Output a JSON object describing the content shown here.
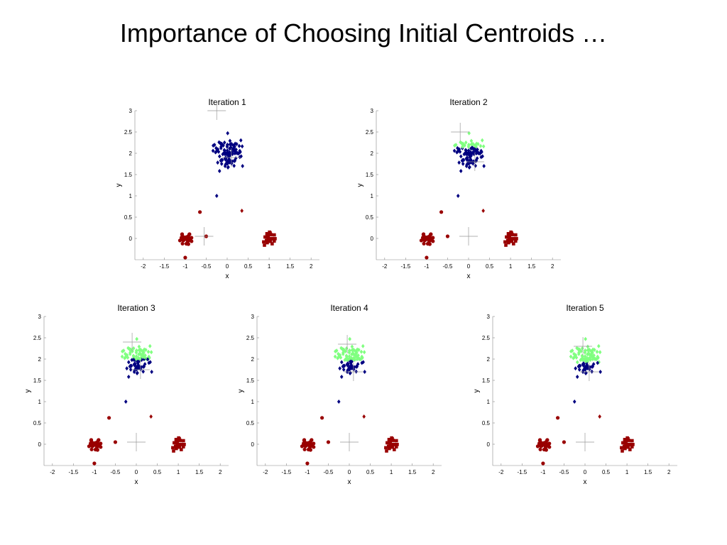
{
  "slide": {
    "title": "Importance of Choosing Initial Centroids …"
  },
  "colors": {
    "cluster_1": "#80ff80",
    "cluster_2": "#000080",
    "cluster_3": "#990000"
  },
  "chart_data": [
    {
      "type": "scatter",
      "title": "Iteration 1",
      "xlabel": "x",
      "ylabel": "y",
      "xlim": [
        -2.2,
        2.2
      ],
      "ylim": [
        -0.5,
        3
      ],
      "xticks": [
        "-2",
        "-1.5",
        "-1",
        "-0.5",
        "0",
        "0.5",
        "1",
        "1.5",
        "2"
      ],
      "yticks": [
        "0",
        "0.5",
        "1",
        "1.5",
        "2",
        "2.5",
        "3"
      ],
      "centroids": [
        [
          -0.25,
          3.0
        ],
        [
          0.1,
          1.9
        ],
        [
          -0.55,
          0.05
        ]
      ]
    },
    {
      "type": "scatter",
      "title": "Iteration 2",
      "xlabel": "x",
      "ylabel": "y",
      "xlim": [
        -2.2,
        2.2
      ],
      "ylim": [
        -0.5,
        3
      ],
      "xticks": [
        "-2",
        "-1.5",
        "-1",
        "-0.5",
        "0",
        "0.5",
        "1",
        "1.5",
        "2"
      ],
      "yticks": [
        "0",
        "0.5",
        "1",
        "1.5",
        "2",
        "2.5",
        "3"
      ],
      "centroids": [
        [
          -0.2,
          2.5
        ],
        [
          0.15,
          1.8
        ],
        [
          0.0,
          0.05
        ]
      ]
    },
    {
      "type": "scatter",
      "title": "Iteration 3",
      "xlabel": "x",
      "ylabel": "y",
      "xlim": [
        -2.2,
        2.2
      ],
      "ylim": [
        -0.5,
        3
      ],
      "xticks": [
        "-2",
        "-1.5",
        "-1",
        "-0.5",
        "0",
        "0.5",
        "1",
        "1.5",
        "2"
      ],
      "yticks": [
        "0",
        "0.5",
        "1",
        "1.5",
        "2",
        "2.5",
        "3"
      ],
      "centroids": [
        [
          -0.1,
          2.4
        ],
        [
          0.1,
          1.75
        ],
        [
          0.0,
          0.05
        ]
      ]
    },
    {
      "type": "scatter",
      "title": "Iteration 4",
      "xlabel": "x",
      "ylabel": "y",
      "xlim": [
        -2.2,
        2.2
      ],
      "ylim": [
        -0.5,
        3
      ],
      "xticks": [
        "-2",
        "-1.5",
        "-1",
        "-0.5",
        "0",
        "0.5",
        "1",
        "1.5",
        "2"
      ],
      "yticks": [
        "0",
        "0.5",
        "1",
        "1.5",
        "2",
        "2.5",
        "3"
      ],
      "centroids": [
        [
          -0.05,
          2.35
        ],
        [
          0.1,
          1.7
        ],
        [
          0.0,
          0.05
        ]
      ]
    },
    {
      "type": "scatter",
      "title": "Iteration 5",
      "xlabel": "x",
      "ylabel": "y",
      "xlim": [
        -2.2,
        2.2
      ],
      "ylim": [
        -0.5,
        3
      ],
      "xticks": [
        "-2",
        "-1.5",
        "-1",
        "-0.5",
        "0",
        "0.5",
        "1",
        "1.5",
        "2"
      ],
      "yticks": [
        "0",
        "0.5",
        "1",
        "1.5",
        "2",
        "2.5",
        "3"
      ],
      "centroids": [
        [
          -0.05,
          2.3
        ],
        [
          0.1,
          1.7
        ],
        [
          0.0,
          0.05
        ]
      ]
    }
  ]
}
